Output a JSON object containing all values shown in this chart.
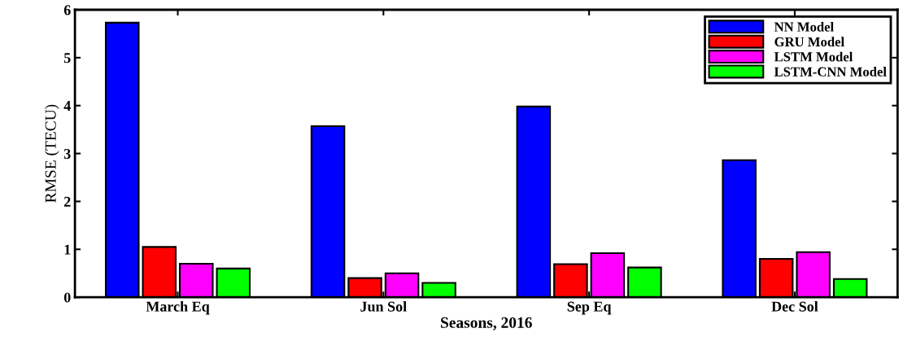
{
  "chart_data": {
    "type": "bar",
    "xlabel": "Seasons, 2016",
    "ylabel": "RMSE (TECU)",
    "categories": [
      "March Eq",
      "Jun Sol",
      "Sep Eq",
      "Dec Sol"
    ],
    "series": [
      {
        "name": "NN Model",
        "color": "#0000ff",
        "values": [
          5.73,
          3.57,
          3.98,
          2.86
        ]
      },
      {
        "name": "GRU Model",
        "color": "#ff0000",
        "values": [
          1.05,
          0.4,
          0.69,
          0.8
        ]
      },
      {
        "name": "LSTM Model",
        "color": "#ff00ff",
        "values": [
          0.7,
          0.5,
          0.92,
          0.94
        ]
      },
      {
        "name": "LSTM-CNN Model",
        "color": "#00ff00",
        "values": [
          0.6,
          0.3,
          0.62,
          0.38
        ]
      }
    ],
    "ylim": [
      0,
      6
    ],
    "yticks": [
      0,
      1,
      2,
      3,
      4,
      5,
      6
    ],
    "grid": false,
    "legend": "top right"
  }
}
